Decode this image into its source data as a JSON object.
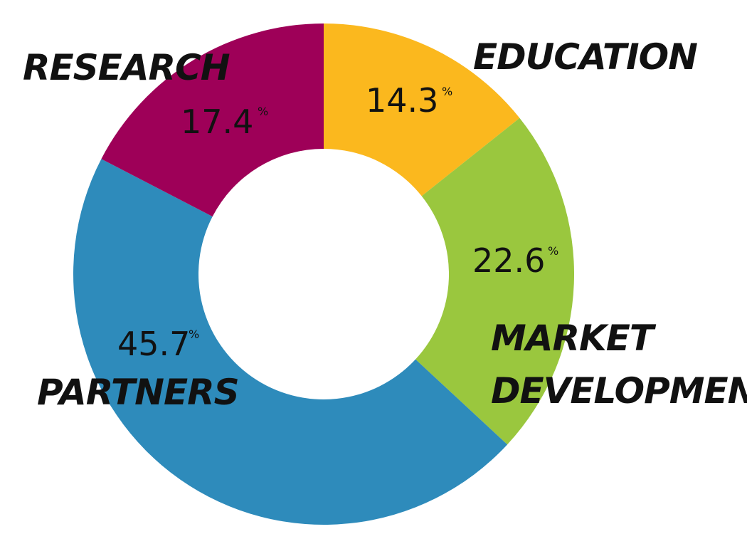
{
  "chart_data": {
    "type": "pie",
    "donut": true,
    "categories": [
      "EDUCATION",
      "MARKET DEVELOPMENT",
      "PARTNERS",
      "RESEARCH"
    ],
    "values": [
      14.3,
      22.6,
      45.7,
      17.4
    ],
    "value_labels": [
      "14.3",
      "22.6",
      "45.7",
      "17.4"
    ],
    "percent_symbol": "%",
    "colors": [
      "#FBB81E",
      "#9AC73E",
      "#2E8BBB",
      "#9E0058"
    ],
    "legend": "none"
  }
}
